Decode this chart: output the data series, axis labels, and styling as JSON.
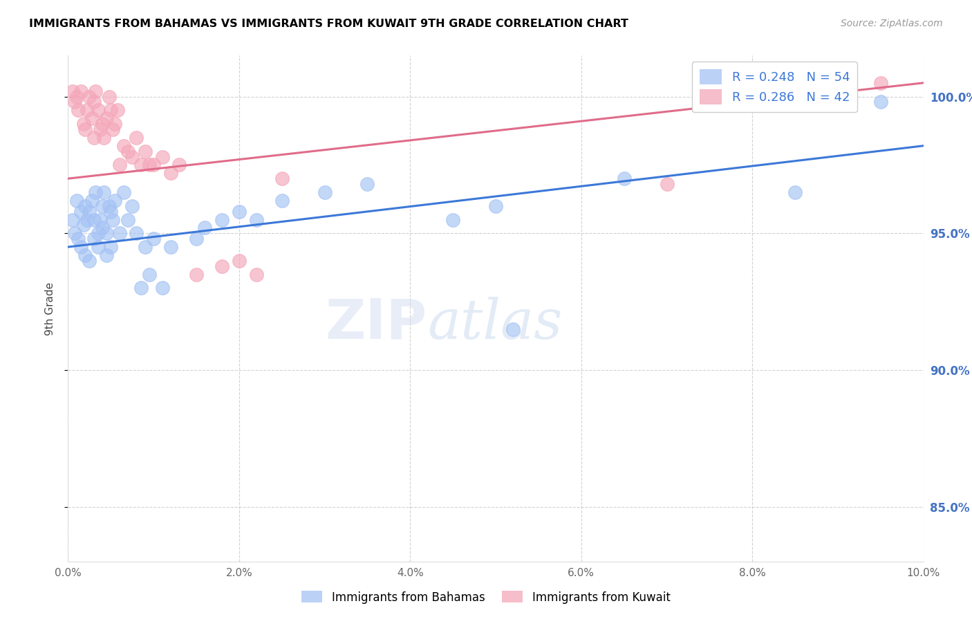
{
  "title": "IMMIGRANTS FROM BAHAMAS VS IMMIGRANTS FROM KUWAIT 9TH GRADE CORRELATION CHART",
  "source": "Source: ZipAtlas.com",
  "ylabel": "9th Grade",
  "xlim": [
    0.0,
    10.0
  ],
  "ylim": [
    83.0,
    101.5
  ],
  "yticks": [
    85.0,
    90.0,
    95.0,
    100.0
  ],
  "xticks": [
    0.0,
    2.0,
    4.0,
    6.0,
    8.0,
    10.0
  ],
  "blue_r": 0.248,
  "blue_n": 54,
  "pink_r": 0.286,
  "pink_n": 42,
  "blue_color": "#a4c2f4",
  "pink_color": "#f4a7b9",
  "blue_line_color": "#3c78d8",
  "pink_line_color": "#e06c8a",
  "blue_scatter_x": [
    0.05,
    0.08,
    0.1,
    0.12,
    0.15,
    0.15,
    0.18,
    0.2,
    0.2,
    0.22,
    0.25,
    0.25,
    0.28,
    0.3,
    0.3,
    0.32,
    0.35,
    0.35,
    0.38,
    0.4,
    0.4,
    0.42,
    0.45,
    0.45,
    0.48,
    0.5,
    0.5,
    0.52,
    0.55,
    0.6,
    0.65,
    0.7,
    0.75,
    0.8,
    0.85,
    0.9,
    0.95,
    1.0,
    1.1,
    1.2,
    1.5,
    1.6,
    1.8,
    2.0,
    2.2,
    2.5,
    3.0,
    3.5,
    4.5,
    5.0,
    5.2,
    6.5,
    8.5,
    9.5
  ],
  "blue_scatter_y": [
    95.5,
    95.0,
    96.2,
    94.8,
    95.8,
    94.5,
    95.3,
    96.0,
    94.2,
    95.5,
    95.8,
    94.0,
    96.2,
    95.5,
    94.8,
    96.5,
    95.0,
    94.5,
    95.5,
    96.0,
    95.2,
    96.5,
    95.0,
    94.2,
    96.0,
    95.8,
    94.5,
    95.5,
    96.2,
    95.0,
    96.5,
    95.5,
    96.0,
    95.0,
    93.0,
    94.5,
    93.5,
    94.8,
    93.0,
    94.5,
    94.8,
    95.2,
    95.5,
    95.8,
    95.5,
    96.2,
    96.5,
    96.8,
    95.5,
    96.0,
    91.5,
    97.0,
    96.5,
    99.8
  ],
  "pink_scatter_x": [
    0.05,
    0.08,
    0.1,
    0.12,
    0.15,
    0.18,
    0.2,
    0.22,
    0.25,
    0.28,
    0.3,
    0.3,
    0.32,
    0.35,
    0.38,
    0.4,
    0.42,
    0.45,
    0.48,
    0.5,
    0.52,
    0.55,
    0.58,
    0.6,
    0.65,
    0.7,
    0.75,
    0.8,
    0.85,
    0.9,
    0.95,
    1.0,
    1.1,
    1.2,
    1.3,
    1.5,
    1.8,
    2.0,
    2.2,
    2.5,
    7.0,
    9.5
  ],
  "pink_scatter_y": [
    100.2,
    99.8,
    100.0,
    99.5,
    100.2,
    99.0,
    98.8,
    99.5,
    100.0,
    99.2,
    98.5,
    99.8,
    100.2,
    99.5,
    98.8,
    99.0,
    98.5,
    99.2,
    100.0,
    99.5,
    98.8,
    99.0,
    99.5,
    97.5,
    98.2,
    98.0,
    97.8,
    98.5,
    97.5,
    98.0,
    97.5,
    97.5,
    97.8,
    97.2,
    97.5,
    93.5,
    93.8,
    94.0,
    93.5,
    97.0,
    96.8,
    100.5
  ],
  "blue_line_x0": 0.0,
  "blue_line_y0": 94.5,
  "blue_line_x1": 10.0,
  "blue_line_y1": 98.2,
  "pink_line_x0": 0.0,
  "pink_line_y0": 97.0,
  "pink_line_x1": 10.0,
  "pink_line_y1": 100.5,
  "legend_blue_label": "Immigrants from Bahamas",
  "legend_pink_label": "Immigrants from Kuwait",
  "watermark_zip": "ZIP",
  "watermark_atlas": "atlas",
  "background_color": "#ffffff",
  "grid_color": "#cccccc",
  "title_color": "#000000",
  "right_axis_color": "#4472c4",
  "legend_r_color": "#3c78d8",
  "legend_n_color": "#cc3366"
}
